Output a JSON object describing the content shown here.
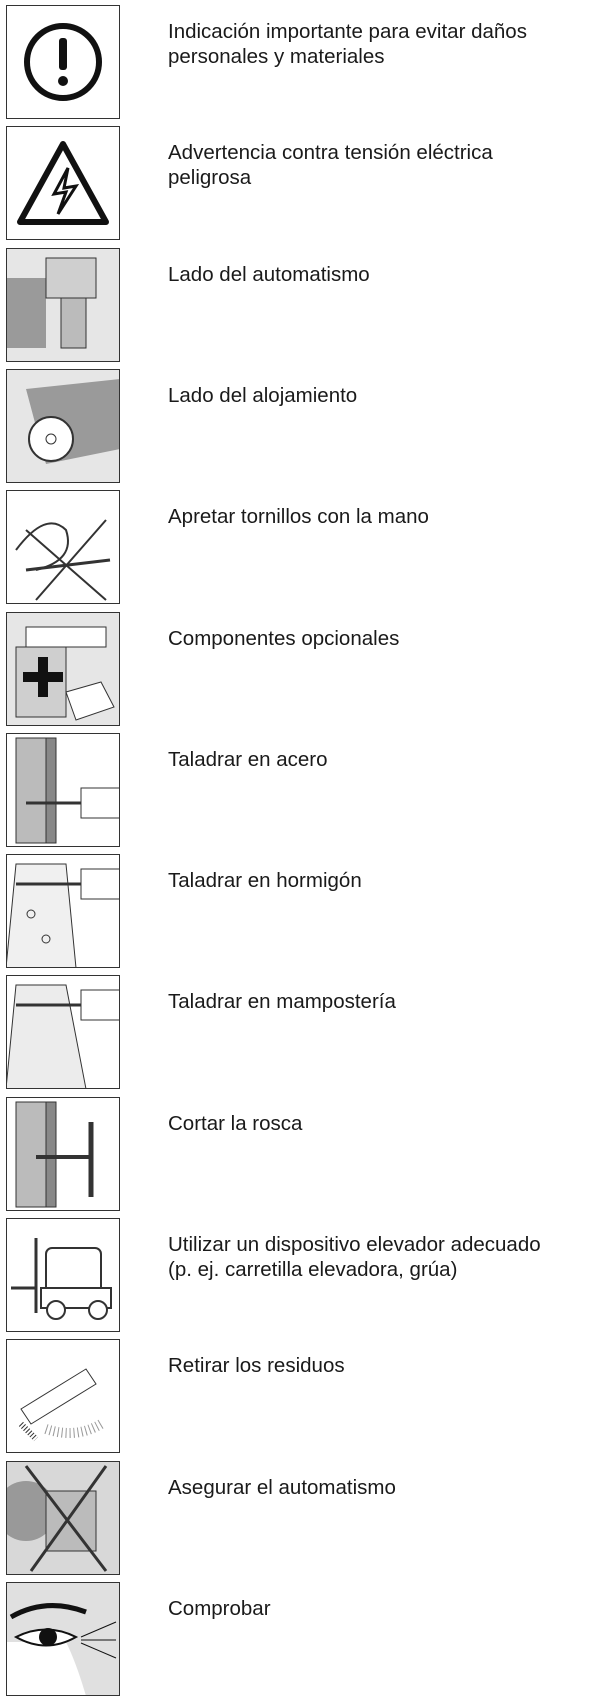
{
  "items": [
    {
      "lines": [
        "Indicación importante para evitar daños",
        "personales y materiales"
      ]
    },
    {
      "lines": [
        "Advertencia contra tensión eléctrica",
        "peligrosa"
      ]
    },
    {
      "lines": [
        "Lado del automatismo"
      ]
    },
    {
      "lines": [
        "Lado del alojamiento"
      ]
    },
    {
      "lines": [
        "Apretar tornillos con la mano"
      ]
    },
    {
      "lines": [
        "Componentes opcionales"
      ]
    },
    {
      "lines": [
        "Taladrar en acero"
      ]
    },
    {
      "lines": [
        "Taladrar en hormigón"
      ]
    },
    {
      "lines": [
        "Taladrar en mampostería"
      ]
    },
    {
      "lines": [
        "Cortar la rosca"
      ]
    },
    {
      "lines": [
        "Utilizar un dispositivo elevador adecuado",
        "(p. ej. carretilla elevadora, grúa)"
      ]
    },
    {
      "lines": [
        "Retirar los residuos"
      ]
    },
    {
      "lines": [
        "Asegurar el automatismo"
      ]
    },
    {
      "lines": [
        "Comprobar"
      ]
    }
  ]
}
